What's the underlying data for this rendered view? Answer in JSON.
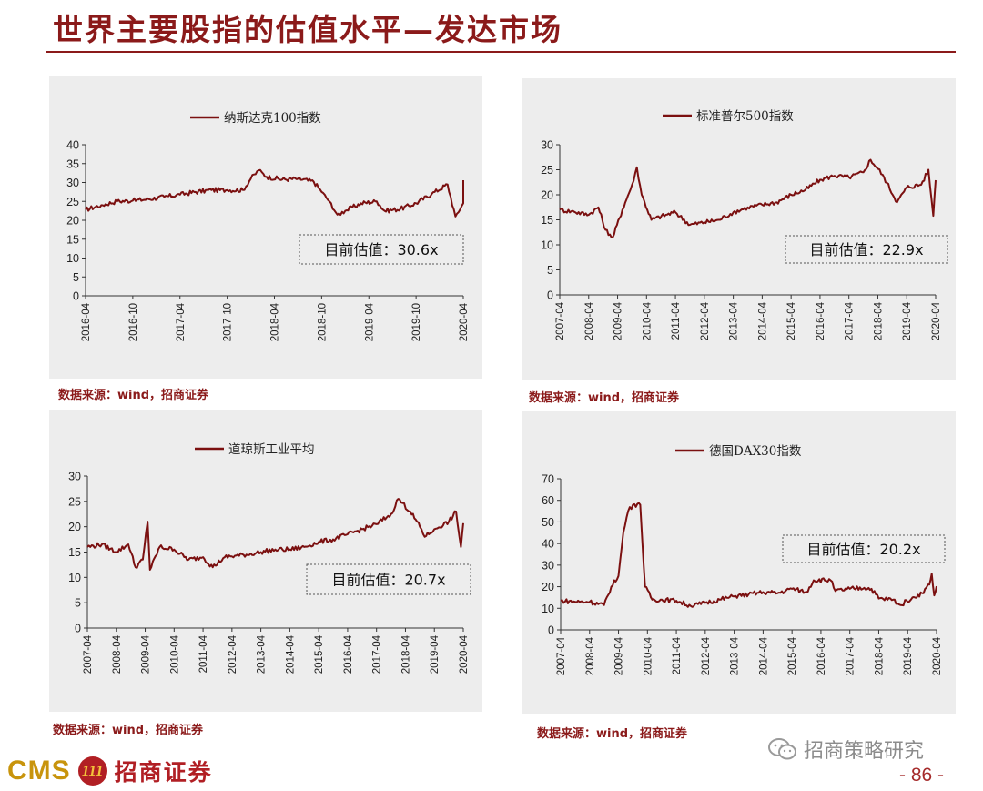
{
  "page": {
    "title": "世界主要股指的估值水平—发达市场",
    "page_number": "- 86 -",
    "brand": {
      "cms": "CMS",
      "emblem": "111",
      "name": "招商证券"
    },
    "watermark": "招商策略研究"
  },
  "colors": {
    "series": "#7b1010",
    "title": "#8b1a1a",
    "panel_bg": "#ededed"
  },
  "chart_data": [
    {
      "type": "line",
      "series_name": "纳斯达克100指数",
      "source": "数据来源：wind，招商证券",
      "annotation": "目前估值：30.6x",
      "ylim": [
        0,
        40
      ],
      "yticks": [
        0,
        5,
        10,
        15,
        20,
        25,
        30,
        35,
        40
      ],
      "xlim": [
        "2016-04",
        "2020-04"
      ],
      "xticks": [
        "2016-04",
        "2016-10",
        "2017-04",
        "2017-10",
        "2018-04",
        "2018-10",
        "2019-04",
        "2019-10",
        "2020-04"
      ],
      "points": [
        [
          "2016-04",
          22.8
        ],
        [
          "2016-06",
          24.0
        ],
        [
          "2016-08",
          25.0
        ],
        [
          "2016-10",
          25.2
        ],
        [
          "2016-12",
          25.6
        ],
        [
          "2017-02",
          26.2
        ],
        [
          "2017-04",
          26.8
        ],
        [
          "2017-06",
          27.5
        ],
        [
          "2017-08",
          28.0
        ],
        [
          "2017-10",
          28.0
        ],
        [
          "2017-12",
          28.0
        ],
        [
          "2018-01",
          31.0
        ],
        [
          "2018-02",
          33.2
        ],
        [
          "2018-03",
          31.5
        ],
        [
          "2018-05",
          30.8
        ],
        [
          "2018-07",
          31.0
        ],
        [
          "2018-09",
          30.2
        ],
        [
          "2018-10",
          27.5
        ],
        [
          "2018-11",
          25.0
        ],
        [
          "2018-12",
          21.5
        ],
        [
          "2019-01",
          22.5
        ],
        [
          "2019-03",
          24.5
        ],
        [
          "2019-05",
          25.0
        ],
        [
          "2019-06",
          22.5
        ],
        [
          "2019-08",
          23.0
        ],
        [
          "2019-10",
          24.5
        ],
        [
          "2019-12",
          27.0
        ],
        [
          "2020-02",
          29.5
        ],
        [
          "2020-03",
          21.0
        ],
        [
          "2020-04",
          24.5
        ],
        [
          "2020-04",
          30.6
        ]
      ]
    },
    {
      "type": "line",
      "series_name": "标准普尔500指数",
      "source": "数据来源：wind，招商证券",
      "annotation": "目前估值：22.9x",
      "ylim": [
        0,
        30
      ],
      "yticks": [
        0,
        5,
        10,
        15,
        20,
        25,
        30
      ],
      "xlim": [
        "2007-04",
        "2020-04"
      ],
      "xticks": [
        "2007-04",
        "2008-04",
        "2009-04",
        "2010-04",
        "2011-04",
        "2012-04",
        "2013-04",
        "2014-04",
        "2015-04",
        "2016-04",
        "2017-04",
        "2018-04",
        "2019-04",
        "2020-04"
      ],
      "points": [
        [
          "2007-04",
          17.0
        ],
        [
          "2007-10",
          16.6
        ],
        [
          "2008-04",
          16.0
        ],
        [
          "2008-08",
          17.5
        ],
        [
          "2008-11",
          13.0
        ],
        [
          "2009-02",
          11.5
        ],
        [
          "2009-06",
          17.0
        ],
        [
          "2009-10",
          22.0
        ],
        [
          "2009-12",
          25.5
        ],
        [
          "2010-02",
          20.0
        ],
        [
          "2010-06",
          15.0
        ],
        [
          "2010-12",
          16.0
        ],
        [
          "2011-04",
          16.5
        ],
        [
          "2011-10",
          14.0
        ],
        [
          "2012-04",
          14.5
        ],
        [
          "2012-10",
          15.0
        ],
        [
          "2013-04",
          16.5
        ],
        [
          "2013-10",
          17.5
        ],
        [
          "2014-04",
          18.0
        ],
        [
          "2014-10",
          18.5
        ],
        [
          "2015-04",
          20.0
        ],
        [
          "2015-10",
          21.0
        ],
        [
          "2016-04",
          23.0
        ],
        [
          "2016-10",
          23.8
        ],
        [
          "2017-04",
          23.5
        ],
        [
          "2017-10",
          24.5
        ],
        [
          "2018-01",
          27.0
        ],
        [
          "2018-06",
          24.0
        ],
        [
          "2018-12",
          18.5
        ],
        [
          "2019-04",
          21.5
        ],
        [
          "2019-10",
          22.0
        ],
        [
          "2020-01",
          25.0
        ],
        [
          "2020-03",
          15.8
        ],
        [
          "2020-04",
          22.9
        ]
      ]
    },
    {
      "type": "line",
      "series_name": "道琼斯工业平均",
      "source": "数据来源：wind，招商证券",
      "annotation": "目前估值：20.7x",
      "ylim": [
        0,
        30
      ],
      "yticks": [
        0,
        5,
        10,
        15,
        20,
        25,
        30
      ],
      "xlim": [
        "2007-04",
        "2020-04"
      ],
      "xticks": [
        "2007-04",
        "2008-04",
        "2009-04",
        "2010-04",
        "2011-04",
        "2012-04",
        "2013-04",
        "2014-04",
        "2015-04",
        "2016-04",
        "2017-04",
        "2018-04",
        "2019-04",
        "2020-04"
      ],
      "points": [
        [
          "2007-04",
          16.0
        ],
        [
          "2007-10",
          16.5
        ],
        [
          "2008-04",
          15.0
        ],
        [
          "2008-09",
          16.5
        ],
        [
          "2008-12",
          12.0
        ],
        [
          "2009-03",
          13.5
        ],
        [
          "2009-05",
          21.0
        ],
        [
          "2009-06",
          11.5
        ],
        [
          "2009-10",
          16.0
        ],
        [
          "2010-04",
          15.5
        ],
        [
          "2010-10",
          13.5
        ],
        [
          "2011-04",
          14.0
        ],
        [
          "2011-08",
          12.0
        ],
        [
          "2012-01",
          14.0
        ],
        [
          "2012-10",
          14.5
        ],
        [
          "2013-04",
          15.0
        ],
        [
          "2013-10",
          15.5
        ],
        [
          "2014-04",
          15.5
        ],
        [
          "2014-10",
          16.0
        ],
        [
          "2015-04",
          17.0
        ],
        [
          "2015-10",
          17.5
        ],
        [
          "2016-04",
          18.5
        ],
        [
          "2016-10",
          19.5
        ],
        [
          "2017-04",
          20.5
        ],
        [
          "2017-10",
          22.5
        ],
        [
          "2018-01",
          25.5
        ],
        [
          "2018-06",
          23.0
        ],
        [
          "2018-10",
          20.0
        ],
        [
          "2018-12",
          18.0
        ],
        [
          "2019-04",
          19.5
        ],
        [
          "2019-10",
          21.0
        ],
        [
          "2020-01",
          23.0
        ],
        [
          "2020-03",
          16.0
        ],
        [
          "2020-04",
          20.7
        ]
      ]
    },
    {
      "type": "line",
      "series_name": "德国DAX30指数",
      "source": "数据来源：wind，招商证券",
      "annotation": "目前估值：20.2x",
      "ylim": [
        0,
        70
      ],
      "yticks": [
        0,
        10,
        20,
        30,
        40,
        50,
        60,
        70
      ],
      "xlim": [
        "2007-04",
        "2020-04"
      ],
      "xticks": [
        "2007-04",
        "2008-04",
        "2009-04",
        "2010-04",
        "2011-04",
        "2012-04",
        "2013-04",
        "2014-04",
        "2015-04",
        "2016-04",
        "2017-04",
        "2018-04",
        "2019-04",
        "2020-04"
      ],
      "points": [
        [
          "2007-04",
          13.5
        ],
        [
          "2007-10",
          13.0
        ],
        [
          "2008-04",
          13.0
        ],
        [
          "2008-10",
          11.5
        ],
        [
          "2009-01",
          20.0
        ],
        [
          "2009-04",
          25.0
        ],
        [
          "2009-06",
          45.0
        ],
        [
          "2009-08",
          55.0
        ],
        [
          "2009-10",
          58.0
        ],
        [
          "2010-01",
          58.0
        ],
        [
          "2010-03",
          20.0
        ],
        [
          "2010-06",
          14.0
        ],
        [
          "2010-10",
          14.0
        ],
        [
          "2011-04",
          13.5
        ],
        [
          "2011-10",
          11.0
        ],
        [
          "2012-04",
          12.5
        ],
        [
          "2012-10",
          14.0
        ],
        [
          "2013-04",
          15.5
        ],
        [
          "2013-10",
          16.5
        ],
        [
          "2014-04",
          17.5
        ],
        [
          "2014-10",
          17.0
        ],
        [
          "2015-04",
          19.0
        ],
        [
          "2015-10",
          17.5
        ],
        [
          "2016-01",
          23.0
        ],
        [
          "2016-08",
          23.0
        ],
        [
          "2016-10",
          18.0
        ],
        [
          "2017-04",
          19.0
        ],
        [
          "2017-10",
          19.5
        ],
        [
          "2018-01",
          19.0
        ],
        [
          "2018-04",
          14.5
        ],
        [
          "2018-10",
          14.0
        ],
        [
          "2019-01",
          11.5
        ],
        [
          "2019-06",
          15.0
        ],
        [
          "2019-10",
          17.0
        ],
        [
          "2020-01",
          21.0
        ],
        [
          "2020-02",
          26.0
        ],
        [
          "2020-03",
          16.0
        ],
        [
          "2020-04",
          20.2
        ]
      ]
    }
  ]
}
